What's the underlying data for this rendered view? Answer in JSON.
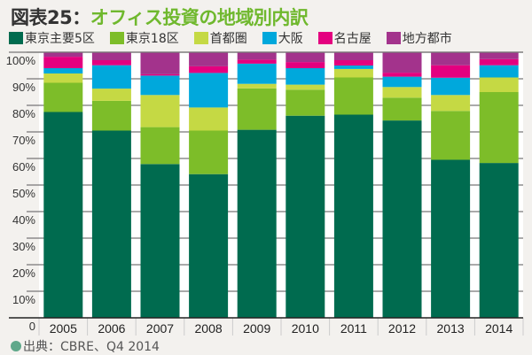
{
  "title": {
    "prefix": "図表25：",
    "main": "オフィス投資の地域別内訳"
  },
  "source": "出典：CBRE、Q4 2014",
  "chart_data": {
    "type": "bar",
    "stacked": true,
    "percent": true,
    "categories": [
      "2005",
      "2006",
      "2007",
      "2008",
      "2009",
      "2010",
      "2011",
      "2012",
      "2013",
      "2014"
    ],
    "series": [
      {
        "name": "東京主要5区",
        "color": "#006b4f",
        "values": [
          77.5,
          70.5,
          57.9,
          54.1,
          70.8,
          76.1,
          76.5,
          74.3,
          59.5,
          58.3
        ]
      },
      {
        "name": "東京18区",
        "color": "#7dbd29",
        "values": [
          11.0,
          11.2,
          13.9,
          16.4,
          15.6,
          9.8,
          14.0,
          8.6,
          18.4,
          26.7
        ]
      },
      {
        "name": "首都圏",
        "color": "#c5d944",
        "values": [
          3.5,
          4.6,
          12.1,
          8.7,
          1.7,
          1.9,
          3.2,
          4.0,
          6.0,
          5.5
        ]
      },
      {
        "name": "大阪",
        "color": "#00a8dc",
        "values": [
          2.0,
          8.8,
          7.3,
          13.0,
          7.6,
          6.2,
          1.3,
          3.9,
          6.5,
          4.6
        ]
      },
      {
        "name": "名古屋",
        "color": "#e4007f",
        "values": [
          4.3,
          1.9,
          0.5,
          2.5,
          1.5,
          2.3,
          2.0,
          1.5,
          4.7,
          2.3
        ]
      },
      {
        "name": "地方都市",
        "color": "#a3338c",
        "values": [
          1.7,
          3.0,
          8.3,
          5.3,
          2.8,
          3.7,
          3.0,
          7.7,
          4.9,
          2.6
        ]
      }
    ],
    "ylim": [
      0,
      100
    ],
    "yticks": [
      "0",
      "10%",
      "20%",
      "30%",
      "40%",
      "50%",
      "60%",
      "70%",
      "80%",
      "90%",
      "100%"
    ],
    "grid": true,
    "legend": "top"
  }
}
